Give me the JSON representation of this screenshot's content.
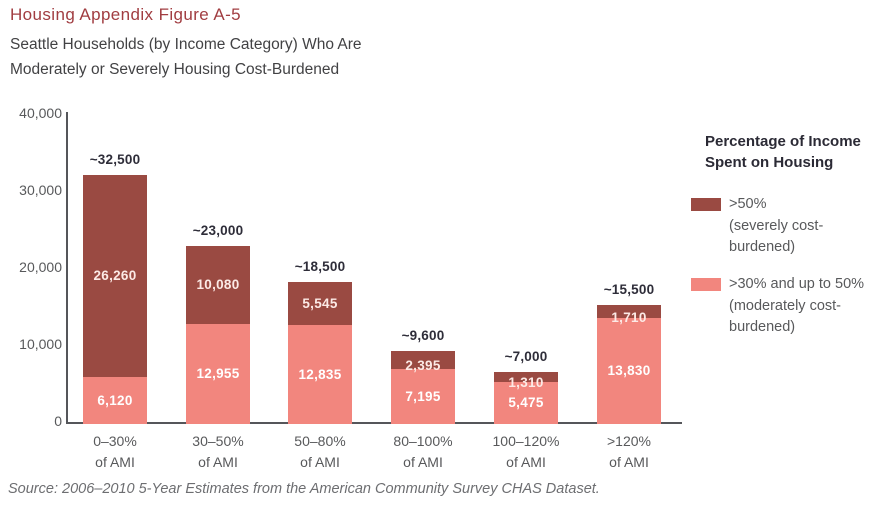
{
  "header": {
    "title": "Housing Appendix Figure A-5",
    "subtitle_line1": "Seattle Households (by Income Category) Who Are",
    "subtitle_line2": "Moderately or Severely Housing Cost-Burdened"
  },
  "chart_data": {
    "type": "bar",
    "stacked": true,
    "title": "Seattle Households (by Income Category) Who Are Moderately or Severely Housing Cost-Burdened",
    "xlabel": "",
    "ylabel": "",
    "ylim": [
      0,
      40000
    ],
    "grid": false,
    "legend_position": "right",
    "categories": [
      {
        "line1": "0–30%",
        "line2": "of AMI"
      },
      {
        "line1": "30–50%",
        "line2": "of AMI"
      },
      {
        "line1": "50–80%",
        "line2": "of AMI"
      },
      {
        "line1": "80–100%",
        "line2": "of AMI"
      },
      {
        "line1": "100–120%",
        "line2": "of AMI"
      },
      {
        "line1": ">120%",
        "line2": "of AMI"
      }
    ],
    "series": [
      {
        "name": ">50% (severely cost-burdened)",
        "color": "#9a4a42",
        "values": [
          26260,
          10080,
          5545,
          2395,
          1310,
          1710
        ],
        "labels": [
          "26,260",
          "10,080",
          "5,545",
          "2,395",
          "1,310",
          "1,710"
        ],
        "label_color": "#fceae6"
      },
      {
        "name": ">30% and up to 50% (moderately cost-burdened)",
        "color": "#f2867e",
        "values": [
          6120,
          12955,
          12835,
          7195,
          5475,
          13830
        ],
        "labels": [
          "6,120",
          "12,955",
          "12,835",
          "7,195",
          "5,475",
          "13,830"
        ],
        "label_color": "#ffffff"
      }
    ],
    "total_labels": [
      "~32,500",
      "~23,000",
      "~18,500",
      "~9,600",
      "~7,000",
      "~15,500"
    ],
    "y_ticks": [
      {
        "value": 0,
        "label": "0"
      },
      {
        "value": 10000,
        "label": "10,000"
      },
      {
        "value": 20000,
        "label": "20,000"
      },
      {
        "value": 30000,
        "label": "30,000"
      },
      {
        "value": 40000,
        "label": "40,000"
      }
    ]
  },
  "legend": {
    "title_line1": "Percentage of Income",
    "title_line2": "Spent on Housing",
    "items": [
      {
        "line1": ">50%",
        "line2": "(severely cost-",
        "line3": "burdened)",
        "color": "#9a4a42"
      },
      {
        "line1": ">30% and up to 50%",
        "line2": "(moderately cost-",
        "line3": "burdened)",
        "color": "#f2867e"
      }
    ]
  },
  "source": "Source: 2006–2010 5-Year Estimates from the American Community Survey CHAS Dataset."
}
